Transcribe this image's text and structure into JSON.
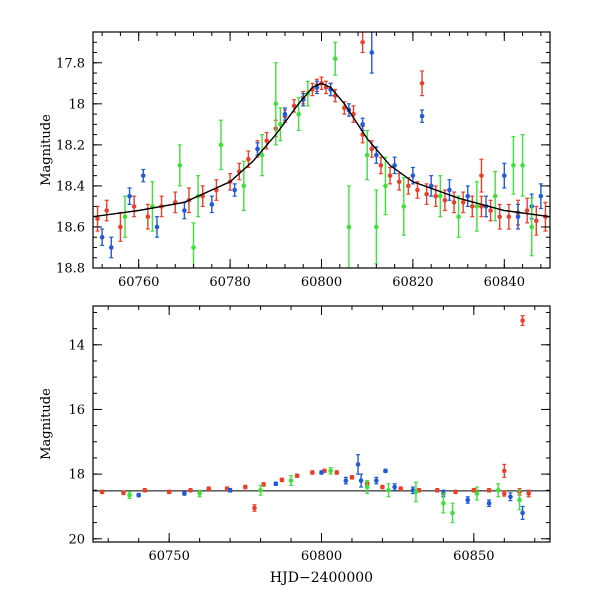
{
  "colors": {
    "red": "#e8402a",
    "blue": "#1f5ad8",
    "green": "#3fe03a",
    "model": "#000000"
  },
  "chart_data": [
    {
      "type": "scatter",
      "title": "",
      "xlabel": "",
      "ylabel": "Magnitude",
      "xlim": [
        60750,
        60850
      ],
      "ylim": [
        18.8,
        17.65
      ],
      "y_inverted": true,
      "xticks": [
        60760,
        60780,
        60800,
        60820,
        60840
      ],
      "yticks": [
        17.8,
        18,
        18.2,
        18.4,
        18.6,
        18.8
      ],
      "yticklabels": [
        "17.8",
        "18",
        "18.2",
        "18.4",
        "18.6",
        "18.8"
      ],
      "model_curve": {
        "color": "black",
        "x": [
          60750,
          60760,
          60770,
          60780,
          60785,
          60790,
          60795,
          60798,
          60800,
          60802,
          60805,
          60810,
          60815,
          60820,
          60830,
          60840,
          60850
        ],
        "y": [
          18.55,
          18.52,
          18.48,
          18.38,
          18.28,
          18.15,
          18.0,
          17.92,
          17.9,
          17.92,
          18.0,
          18.17,
          18.3,
          18.38,
          18.46,
          18.52,
          18.55
        ]
      },
      "series": [
        {
          "color": "red",
          "x": [
            60751,
            60753,
            60756,
            60759,
            60762,
            60765,
            60768,
            60771,
            60774,
            60777,
            60780,
            60782,
            60784,
            60786,
            60788,
            60790,
            60792,
            60794,
            60796,
            60798,
            60799,
            60800,
            60801,
            60802,
            60803,
            60805,
            60807,
            60809,
            60811,
            60813,
            60815,
            60817,
            60819,
            60821,
            60823,
            60825,
            60827,
            60829,
            60831,
            60833,
            60835,
            60837,
            60839,
            60841,
            60843,
            60845,
            60847,
            60849,
            60809,
            60822,
            60835
          ],
          "y": [
            18.56,
            18.52,
            18.6,
            18.5,
            18.55,
            18.5,
            18.48,
            18.47,
            18.45,
            18.42,
            18.38,
            18.33,
            18.27,
            18.22,
            18.18,
            18.12,
            18.06,
            18.01,
            17.97,
            17.93,
            17.91,
            17.9,
            17.92,
            17.93,
            17.96,
            18.02,
            18.05,
            18.15,
            18.22,
            18.3,
            18.35,
            18.38,
            18.4,
            18.42,
            18.44,
            18.45,
            18.47,
            18.48,
            18.48,
            18.5,
            18.5,
            18.52,
            18.55,
            18.55,
            18.53,
            18.52,
            18.57,
            18.55,
            17.7,
            17.9,
            18.35
          ],
          "err": [
            0.06,
            0.05,
            0.07,
            0.05,
            0.06,
            0.05,
            0.05,
            0.06,
            0.05,
            0.05,
            0.04,
            0.04,
            0.04,
            0.04,
            0.04,
            0.04,
            0.03,
            0.03,
            0.03,
            0.03,
            0.03,
            0.03,
            0.03,
            0.03,
            0.03,
            0.03,
            0.04,
            0.04,
            0.04,
            0.04,
            0.04,
            0.04,
            0.04,
            0.04,
            0.05,
            0.05,
            0.05,
            0.05,
            0.05,
            0.05,
            0.05,
            0.05,
            0.06,
            0.06,
            0.06,
            0.06,
            0.07,
            0.07,
            0.05,
            0.06,
            0.08
          ]
        },
        {
          "color": "blue",
          "x": [
            60752,
            60754,
            60758,
            60761,
            60764,
            60770,
            60776,
            60781,
            60786,
            60792,
            60796,
            60799,
            60802,
            60806,
            60809,
            60812,
            60816,
            60820,
            60824,
            60828,
            60832,
            60836,
            60840,
            60843,
            60846,
            60848,
            60811,
            60822
          ],
          "y": [
            18.65,
            18.7,
            18.45,
            18.35,
            18.6,
            18.52,
            18.49,
            18.42,
            18.22,
            18.05,
            17.98,
            17.92,
            17.93,
            18.03,
            18.1,
            18.25,
            18.3,
            18.35,
            18.4,
            18.42,
            18.45,
            18.5,
            18.35,
            18.55,
            18.5,
            18.45,
            17.75,
            18.06
          ],
          "err": [
            0.04,
            0.05,
            0.04,
            0.03,
            0.05,
            0.04,
            0.04,
            0.03,
            0.03,
            0.03,
            0.03,
            0.03,
            0.03,
            0.03,
            0.03,
            0.04,
            0.04,
            0.04,
            0.05,
            0.05,
            0.05,
            0.05,
            0.06,
            0.06,
            0.06,
            0.06,
            0.1,
            0.03
          ]
        },
        {
          "color": "green",
          "x": [
            60757,
            60763,
            60769,
            60773,
            60778,
            60783,
            60787,
            60791,
            60795,
            60797,
            60803,
            60806,
            60810,
            60814,
            60818,
            60826,
            60830,
            60834,
            60838,
            60842,
            60846,
            60772,
            60790,
            60812,
            60844
          ],
          "y": [
            18.55,
            18.5,
            18.3,
            18.45,
            18.2,
            18.4,
            18.25,
            18.1,
            18.05,
            17.95,
            17.78,
            18.6,
            18.25,
            18.4,
            18.5,
            18.45,
            18.55,
            18.5,
            18.45,
            18.3,
            18.6,
            18.7,
            18.0,
            18.6,
            18.3
          ],
          "err": [
            0.1,
            0.12,
            0.1,
            0.1,
            0.12,
            0.12,
            0.1,
            0.08,
            0.08,
            0.06,
            0.08,
            0.2,
            0.12,
            0.14,
            0.14,
            0.1,
            0.1,
            0.12,
            0.12,
            0.14,
            0.14,
            0.12,
            0.2,
            0.18,
            0.15
          ]
        }
      ]
    },
    {
      "type": "scatter",
      "title": "",
      "xlabel": "HJD−2400000",
      "ylabel": "Magnitude",
      "xlim": [
        60725,
        60875
      ],
      "ylim": [
        20.1,
        12.8
      ],
      "y_inverted": true,
      "xticks": [
        60750,
        60800,
        60850
      ],
      "yticks": [
        14,
        16,
        18,
        20
      ],
      "yticklabels": [
        "14",
        "16",
        "18",
        "20"
      ],
      "reference_line": {
        "y": 18.52,
        "color": "black"
      },
      "series": [
        {
          "color": "red",
          "x": [
            60728,
            60735,
            60742,
            60750,
            60757,
            60763,
            60769,
            60775,
            60781,
            60787,
            60792,
            60797,
            60801,
            60805,
            60810,
            60815,
            60820,
            60826,
            60832,
            60838,
            60844,
            60850,
            60855,
            60860,
            60865,
            60868,
            60866,
            60778,
            60860
          ],
          "y": [
            18.55,
            18.58,
            18.5,
            18.55,
            18.5,
            18.45,
            18.45,
            18.4,
            18.32,
            18.18,
            18.05,
            17.95,
            17.9,
            17.95,
            18.1,
            18.3,
            18.4,
            18.45,
            18.5,
            18.5,
            18.55,
            18.5,
            18.5,
            18.6,
            18.55,
            18.6,
            13.25,
            19.05,
            17.9
          ],
          "err": [
            0.05,
            0.05,
            0.05,
            0.05,
            0.05,
            0.05,
            0.05,
            0.05,
            0.05,
            0.05,
            0.05,
            0.05,
            0.05,
            0.05,
            0.05,
            0.05,
            0.05,
            0.05,
            0.05,
            0.05,
            0.05,
            0.05,
            0.05,
            0.08,
            0.1,
            0.1,
            0.15,
            0.1,
            0.2
          ]
        },
        {
          "color": "blue",
          "x": [
            60740,
            60755,
            60770,
            60785,
            60800,
            60808,
            60812,
            60818,
            60824,
            60830,
            60840,
            60848,
            60855,
            60862,
            60866,
            60813,
            60821
          ],
          "y": [
            18.65,
            18.6,
            18.5,
            18.3,
            17.95,
            18.2,
            17.7,
            18.2,
            18.4,
            18.5,
            18.6,
            18.8,
            18.9,
            18.7,
            19.2,
            18.2,
            17.9
          ],
          "err": [
            0.05,
            0.05,
            0.05,
            0.05,
            0.05,
            0.1,
            0.3,
            0.1,
            0.1,
            0.1,
            0.1,
            0.1,
            0.1,
            0.12,
            0.2,
            0.2,
            0.05
          ]
        },
        {
          "color": "green",
          "x": [
            60737,
            60760,
            60780,
            60790,
            60803,
            60815,
            60822,
            60831,
            60840,
            60843,
            60851,
            60858,
            60865
          ],
          "y": [
            18.65,
            18.6,
            18.5,
            18.2,
            17.9,
            18.4,
            18.5,
            18.55,
            18.9,
            19.2,
            18.6,
            18.5,
            18.8
          ],
          "err": [
            0.1,
            0.1,
            0.15,
            0.15,
            0.1,
            0.2,
            0.2,
            0.3,
            0.3,
            0.3,
            0.2,
            0.2,
            0.3
          ]
        }
      ]
    }
  ]
}
